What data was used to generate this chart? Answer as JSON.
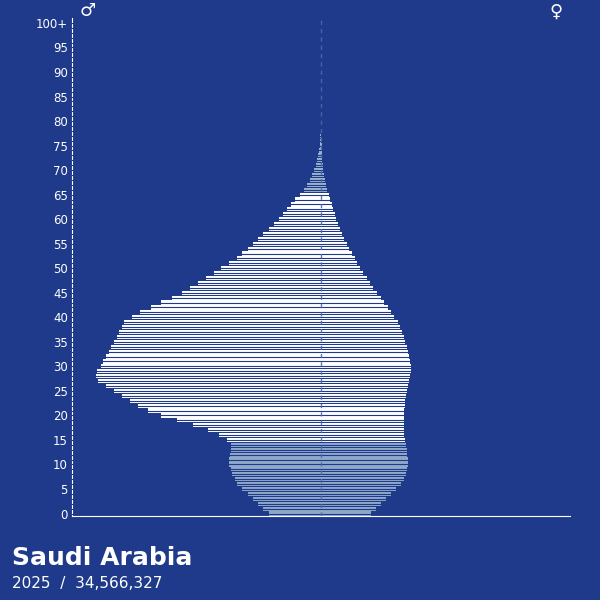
{
  "title": "Saudi Arabia",
  "subtitle": "2025  /  34,566,327",
  "bg_color": "#1f3a8a",
  "bar_color_male": "#ffffff",
  "bar_color_female": "#ffffff",
  "bar_color_young": "#a0aec0",
  "center_line_color": "#4a6aaa",
  "grid_color": "#2a4aaa",
  "text_color": "#ffffff",
  "ages": [
    0,
    1,
    2,
    3,
    4,
    5,
    6,
    7,
    8,
    9,
    10,
    11,
    12,
    13,
    14,
    15,
    16,
    17,
    18,
    19,
    20,
    21,
    22,
    23,
    24,
    25,
    26,
    27,
    28,
    29,
    30,
    31,
    32,
    33,
    34,
    35,
    36,
    37,
    38,
    39,
    40,
    41,
    42,
    43,
    44,
    45,
    46,
    47,
    48,
    49,
    50,
    51,
    52,
    53,
    54,
    55,
    56,
    57,
    58,
    59,
    60,
    61,
    62,
    63,
    64,
    65,
    66,
    67,
    68,
    69,
    70,
    71,
    72,
    73,
    74,
    75,
    76,
    77,
    78,
    79,
    80,
    81,
    82,
    83,
    84,
    85,
    86,
    87,
    88,
    89,
    90,
    91,
    92,
    93,
    94,
    95,
    96,
    97,
    98,
    99,
    100
  ],
  "male": [
    200000,
    220000,
    240000,
    260000,
    280000,
    300000,
    320000,
    330000,
    340000,
    345000,
    350000,
    350000,
    348000,
    345000,
    342000,
    360000,
    390000,
    430000,
    490000,
    550000,
    610000,
    660000,
    700000,
    730000,
    760000,
    790000,
    820000,
    850000,
    860000,
    855000,
    840000,
    830000,
    820000,
    810000,
    800000,
    790000,
    780000,
    770000,
    760000,
    750000,
    720000,
    690000,
    650000,
    610000,
    570000,
    530000,
    500000,
    470000,
    440000,
    410000,
    380000,
    350000,
    320000,
    300000,
    280000,
    260000,
    240000,
    220000,
    200000,
    180000,
    160000,
    145000,
    130000,
    115000,
    100000,
    80000,
    65000,
    52000,
    42000,
    33000,
    25000,
    19000,
    14000,
    10000,
    7000,
    5000,
    3500,
    2500,
    1800,
    1200,
    800,
    550,
    380,
    260,
    170,
    110,
    70,
    45,
    28,
    17,
    10,
    6,
    4,
    2,
    1,
    1,
    1,
    0,
    0,
    0,
    0
  ],
  "female": [
    190000,
    210000,
    228000,
    248000,
    268000,
    285000,
    305000,
    315000,
    323000,
    328000,
    333000,
    333000,
    330000,
    327000,
    323000,
    320000,
    318000,
    316000,
    315000,
    315000,
    316000,
    318000,
    320000,
    322000,
    325000,
    328000,
    332000,
    336000,
    340000,
    342000,
    342000,
    340000,
    337000,
    333000,
    328000,
    322000,
    315000,
    308000,
    300000,
    292000,
    280000,
    268000,
    255000,
    242000,
    228000,
    214000,
    200000,
    187000,
    174000,
    162000,
    150000,
    139000,
    128000,
    118000,
    108000,
    98000,
    89000,
    81000,
    73000,
    66000,
    59000,
    53000,
    47000,
    41000,
    35000,
    29000,
    24000,
    19000,
    15000,
    12000,
    9000,
    7000,
    5200,
    3800,
    2800,
    2000,
    1400,
    1000,
    700,
    480,
    320,
    210,
    140,
    90,
    58,
    38,
    24,
    15,
    9,
    6,
    3,
    2,
    1,
    1,
    0,
    0,
    0,
    0,
    0,
    0,
    0
  ],
  "xlim": 950000,
  "ytick_step": 5
}
